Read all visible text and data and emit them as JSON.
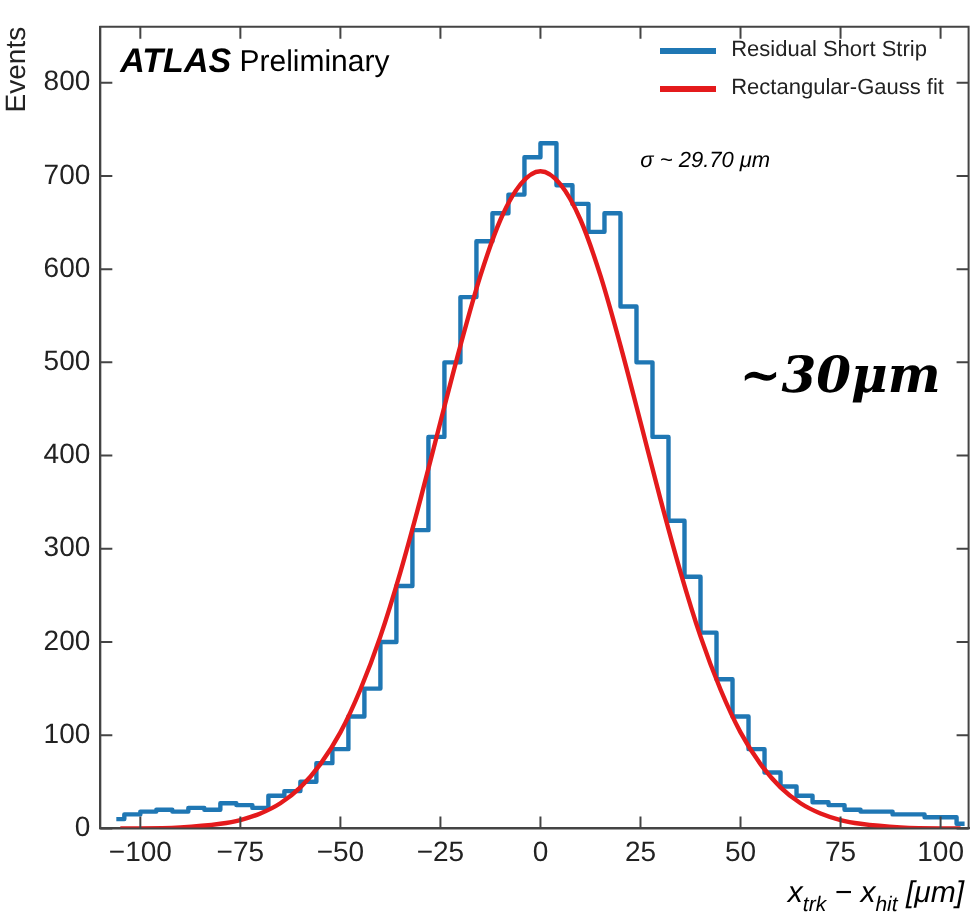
{
  "chart_data": {
    "type": "step",
    "xlabel": "x$_{trk}$ − x$_{hit}$ [μm]",
    "ylabel": "Events",
    "xlim": [
      -110,
      107
    ],
    "ylim": [
      0,
      860
    ],
    "xticks": [
      -100,
      -75,
      -50,
      -25,
      0,
      25,
      50,
      75,
      100
    ],
    "yticks": [
      0,
      100,
      200,
      300,
      400,
      500,
      600,
      700,
      800
    ],
    "grid": false,
    "legend": "top right",
    "marker": "none",
    "annotations": [
      "ATLAS Preliminary",
      "σ ~ 29.70 μm",
      "~30μm"
    ],
    "series": [
      {
        "name": "Residual Short Strip",
        "type": "step",
        "color": "#1f77b4",
        "x": [
          -106,
          -102,
          -98,
          -94,
          -90,
          -86,
          -82,
          -78,
          -74,
          -70,
          -66,
          -62,
          -58,
          -54,
          -50,
          -46,
          -42,
          -38,
          -34,
          -30,
          -26,
          -22,
          -18,
          -14,
          -10,
          -6,
          -2,
          2,
          6,
          10,
          14,
          18,
          22,
          26,
          30,
          34,
          38,
          42,
          46,
          50,
          54,
          58,
          62,
          66,
          70,
          74,
          78,
          82,
          86,
          90,
          94,
          98,
          102,
          106
        ],
        "values": [
          10,
          15,
          18,
          20,
          18,
          22,
          20,
          27,
          25,
          22,
          35,
          40,
          50,
          70,
          85,
          120,
          150,
          200,
          260,
          320,
          420,
          500,
          570,
          630,
          660,
          680,
          720,
          735,
          690,
          670,
          640,
          660,
          560,
          500,
          420,
          330,
          270,
          210,
          160,
          120,
          85,
          60,
          45,
          35,
          28,
          25,
          20,
          18,
          18,
          15,
          15,
          12,
          12,
          5
        ]
      },
      {
        "name": "Rectangular-Gauss fit",
        "type": "line",
        "color": "#e41a1c",
        "x": [
          -105,
          -100,
          -90,
          -80,
          -75,
          -70,
          -65,
          -60,
          -55,
          -50,
          -45,
          -40,
          -35,
          -30,
          -25,
          -20,
          -15,
          -10,
          -5,
          0,
          5,
          10,
          15,
          20,
          25,
          30,
          35,
          40,
          45,
          50,
          55,
          60,
          65,
          70,
          75,
          80,
          90,
          100,
          105
        ],
        "values": [
          0,
          0,
          1,
          5,
          9,
          16,
          27,
          44,
          69,
          103,
          149,
          206,
          275,
          353,
          436,
          518,
          593,
          653,
          691,
          705,
          691,
          653,
          593,
          518,
          436,
          353,
          275,
          206,
          149,
          103,
          69,
          44,
          27,
          16,
          9,
          5,
          1,
          0,
          0
        ]
      }
    ]
  }
}
